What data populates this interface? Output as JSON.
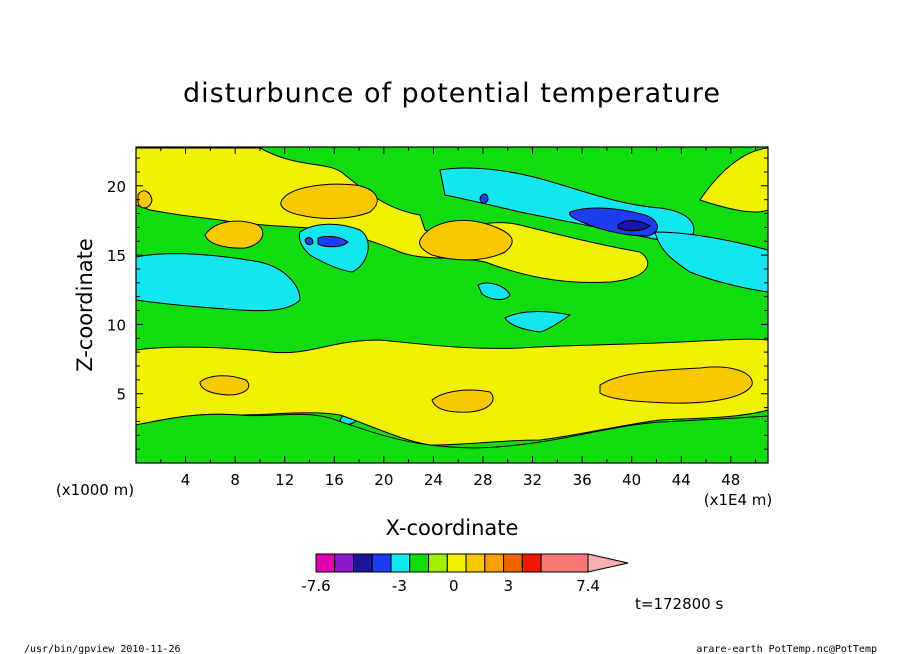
{
  "chart_data": {
    "type": "heatmap",
    "title": "disturbunce of potential temperature",
    "xlabel": "X-coordinate",
    "ylabel": "Z-coordinate",
    "x_unit": "(x1E4 m)",
    "y_unit": "(x1000 m)",
    "x_ticks": [
      "4",
      "8",
      "12",
      "16",
      "20",
      "24",
      "28",
      "32",
      "36",
      "40",
      "44",
      "48"
    ],
    "x_tick_values": [
      4,
      8,
      12,
      16,
      20,
      24,
      28,
      32,
      36,
      40,
      44,
      48
    ],
    "y_ticks": [
      "5",
      "10",
      "15",
      "20"
    ],
    "y_tick_values": [
      5,
      10,
      15,
      20
    ],
    "xlim": [
      0,
      51
    ],
    "ylim": [
      0,
      22.8
    ],
    "colorbar": {
      "min": -7.6,
      "max": 7.4,
      "labels": [
        "-7.6",
        "-3",
        "0",
        "3",
        "7.4"
      ],
      "label_values": [
        -7.6,
        -3,
        0,
        3,
        7.4
      ],
      "colors": [
        "#e000b0",
        "#8a1ac8",
        "#1a14a0",
        "#1e3cf0",
        "#14e6f0",
        "#10dc10",
        "#a0f000",
        "#f0f000",
        "#f8c800",
        "#f8a000",
        "#f06400",
        "#f01800",
        "#f87878",
        "#f8b0b0"
      ]
    },
    "annotation": "t=172800 s"
  },
  "footer": {
    "left": "/usr/bin/gpview   2010-11-26",
    "right": "arare-earth_PotTemp.nc@PotTemp"
  }
}
